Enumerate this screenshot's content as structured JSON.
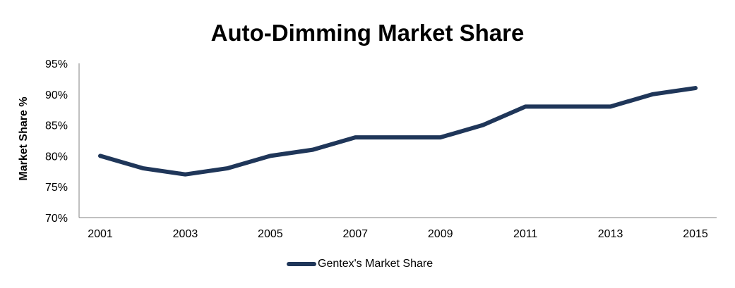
{
  "chart_data": {
    "type": "line",
    "title": "Auto-Dimming Market Share",
    "xlabel": "",
    "ylabel": "Market Share %",
    "x": [
      2001,
      2002,
      2003,
      2004,
      2005,
      2006,
      2007,
      2008,
      2009,
      2010,
      2011,
      2012,
      2013,
      2014,
      2015
    ],
    "x_tick_labels": [
      "2001",
      "2003",
      "2005",
      "2007",
      "2009",
      "2011",
      "2013",
      "2015"
    ],
    "y_tick_labels": [
      "70%",
      "75%",
      "80%",
      "85%",
      "90%",
      "95%"
    ],
    "y_ticks": [
      70,
      75,
      80,
      85,
      90,
      95
    ],
    "ylim": [
      70,
      95
    ],
    "xlim": [
      2001,
      2015
    ],
    "grid": false,
    "legend_position": "bottom",
    "series": [
      {
        "name": "Gentex's Market Share",
        "color": "#1f3659",
        "values": [
          80,
          78,
          77,
          78,
          80,
          81,
          83,
          83,
          83,
          85,
          88,
          88,
          88,
          90,
          91
        ]
      }
    ]
  }
}
